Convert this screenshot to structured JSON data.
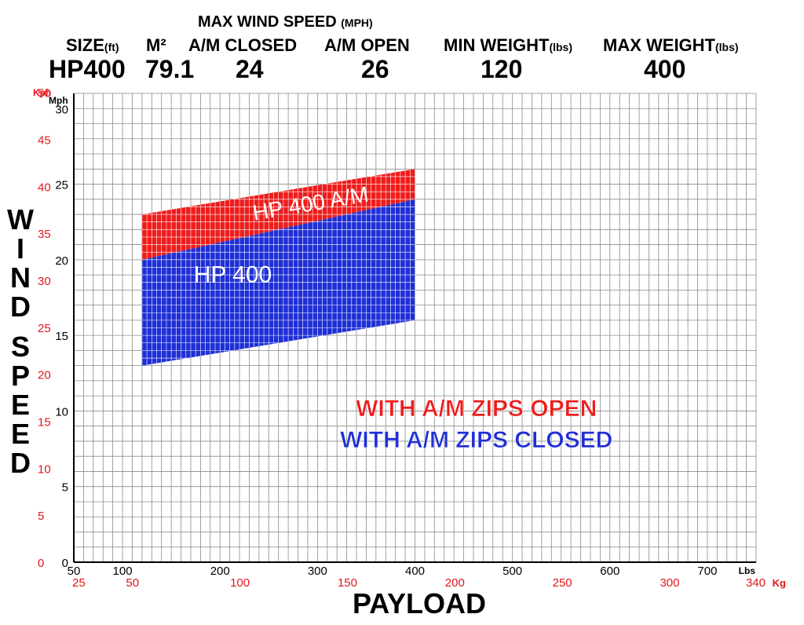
{
  "header": {
    "max_wind_speed": "MAX WIND SPEED",
    "max_wind_speed_unit": "(MPH)",
    "size_label": "SIZE",
    "size_unit": "(ft)",
    "m2_label": "M²",
    "am_closed_label": "A/M CLOSED",
    "am_open_label": "A/M OPEN",
    "min_weight_label": "MIN WEIGHT",
    "min_weight_unit": "(lbs)",
    "max_weight_label": "MAX WEIGHT",
    "max_weight_unit": "(lbs)",
    "size_value": "HP400",
    "m2_value": "79.1",
    "am_closed_value": "24",
    "am_open_value": "26",
    "min_weight_value": "120",
    "max_weight_value": "400"
  },
  "chart_data": {
    "type": "area",
    "xlabel": "PAYLOAD",
    "ylabel": "WIND SPEED",
    "x_unit": "Lbs",
    "x_unit_secondary": "Kg",
    "y_unit": "Mph",
    "y_unit_secondary": "Kph",
    "xlim": [
      50,
      750
    ],
    "ylim": [
      0,
      31
    ],
    "x_ticks": [
      50,
      100,
      200,
      300,
      400,
      500,
      600,
      700
    ],
    "x_ticks_secondary": [
      25,
      50,
      100,
      150,
      200,
      250,
      300,
      340
    ],
    "y_ticks": [
      0,
      5,
      10,
      15,
      20,
      25,
      30
    ],
    "y_ticks_secondary": [
      0,
      5,
      10,
      15,
      20,
      25,
      30,
      35,
      40,
      45,
      50
    ],
    "grid": true,
    "colors": {
      "closed": "#1f2fd6",
      "open": "#ee1c1c",
      "axis_secondary": "#e3151b"
    },
    "series": [
      {
        "name": "HP 400 A/M",
        "color": "#ee1c1c",
        "x": [
          120,
          400
        ],
        "y_upper": [
          23.0,
          26.0
        ],
        "y_lower": [
          20.0,
          24.0
        ]
      },
      {
        "name": "HP 400",
        "color": "#1f2fd6",
        "x": [
          120,
          400
        ],
        "y_upper": [
          20.0,
          24.0
        ],
        "y_lower": [
          13.0,
          16.0
        ]
      }
    ],
    "annotations": [
      {
        "text": "WITH A/M ZIPS OPEN",
        "color": "#ee1c1c"
      },
      {
        "text": "WITH A/M ZIPS CLOSED",
        "color": "#1f2fd6"
      }
    ]
  }
}
